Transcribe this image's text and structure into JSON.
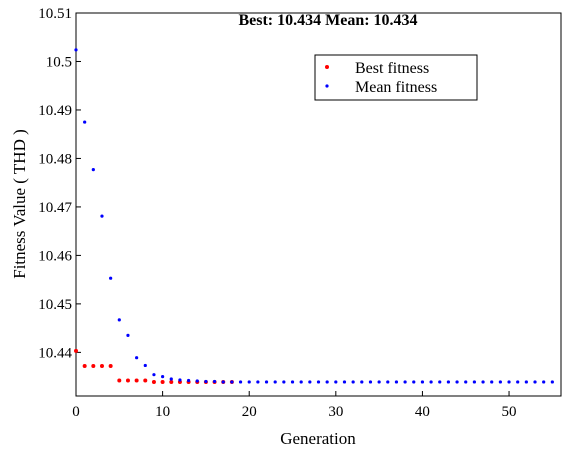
{
  "chart_data": {
    "type": "scatter",
    "title": "Best: 10.434 Mean: 10.434",
    "xlabel": "Generation",
    "ylabel": "Fitness Value ( THD )",
    "xlim": [
      0,
      56
    ],
    "ylim": [
      10.431,
      10.51
    ],
    "x_ticks": [
      0,
      10,
      20,
      30,
      40,
      50
    ],
    "y_ticks": [
      10.44,
      10.45,
      10.46,
      10.47,
      10.48,
      10.49,
      10.5,
      10.51
    ],
    "y_tick_labels": [
      "10.44",
      "10.45",
      "10.46",
      "10.47",
      "10.48",
      "10.49",
      "10.5",
      "10.51"
    ],
    "grid": false,
    "legend_position": "top-right",
    "series": [
      {
        "name": "Best fitness",
        "color": "#ff0000",
        "x": [
          0,
          1,
          2,
          3,
          4,
          5,
          6,
          7,
          8,
          9,
          10,
          11,
          12,
          13,
          14,
          15,
          16,
          17,
          18
        ],
        "y": [
          10.4403,
          10.4372,
          10.4372,
          10.4372,
          10.4372,
          10.4342,
          10.4342,
          10.4342,
          10.4342,
          10.4339,
          10.4339,
          10.4339,
          10.4339,
          10.4339,
          10.4339,
          10.4339,
          10.4339,
          10.4339,
          10.4339
        ]
      },
      {
        "name": "Mean fitness",
        "color": "#0000ff",
        "x": [
          0,
          1,
          2,
          3,
          4,
          5,
          6,
          7,
          8,
          9,
          10,
          11,
          12,
          13,
          14,
          15,
          16,
          17,
          18,
          19,
          20,
          21,
          22,
          23,
          24,
          25,
          26,
          27,
          28,
          29,
          30,
          31,
          32,
          33,
          34,
          35,
          36,
          37,
          38,
          39,
          40,
          41,
          42,
          43,
          44,
          45,
          46,
          47,
          48,
          49,
          50,
          51,
          52,
          53,
          54,
          55
        ],
        "y": [
          10.5024,
          10.4875,
          10.4777,
          10.4681,
          10.4553,
          10.4467,
          10.4435,
          10.4389,
          10.4373,
          10.4354,
          10.435,
          10.4345,
          10.4343,
          10.4342,
          10.4341,
          10.434,
          10.434,
          10.4339,
          10.4339,
          10.4339,
          10.4339,
          10.4339,
          10.4339,
          10.4339,
          10.4339,
          10.4339,
          10.4339,
          10.4339,
          10.4339,
          10.4339,
          10.4339,
          10.4339,
          10.4339,
          10.4339,
          10.4339,
          10.4339,
          10.4339,
          10.4339,
          10.4339,
          10.4339,
          10.4339,
          10.4339,
          10.4339,
          10.4339,
          10.4339,
          10.4339,
          10.4339,
          10.4339,
          10.4339,
          10.4339,
          10.4339,
          10.4339,
          10.4339,
          10.4339,
          10.4339,
          10.4339
        ]
      }
    ]
  }
}
